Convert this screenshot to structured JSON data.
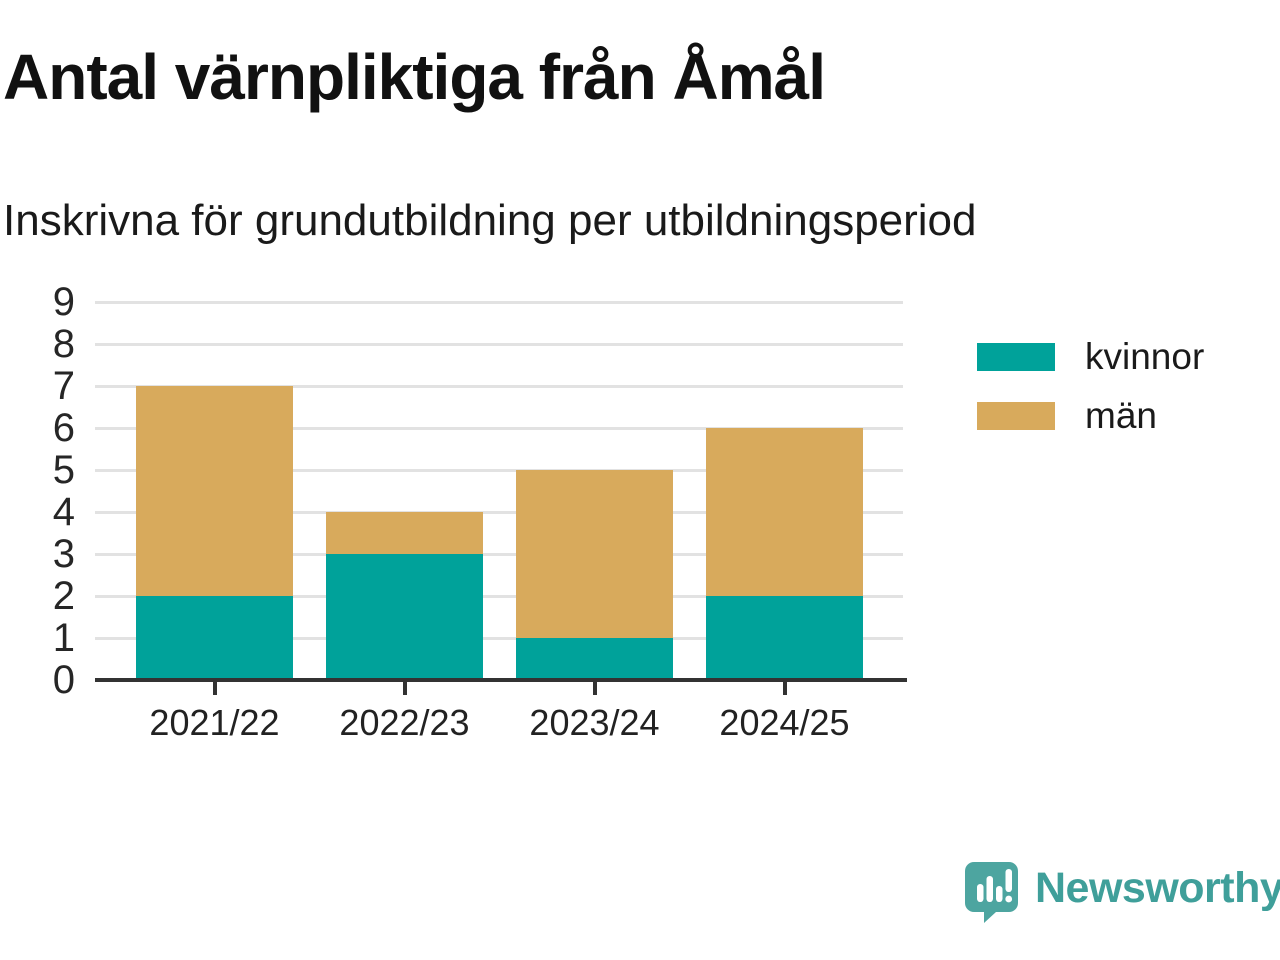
{
  "chart_data": {
    "type": "bar",
    "stacked": true,
    "title": "Antal värnpliktiga från Åmål",
    "subtitle": "Inskrivna för grundutbildning per utbildningsperiod",
    "categories": [
      "2021/22",
      "2022/23",
      "2023/24",
      "2024/25"
    ],
    "series": [
      {
        "name": "kvinnor",
        "color": "#00a29a",
        "values": [
          2,
          3,
          1,
          2
        ]
      },
      {
        "name": "män",
        "color": "#d8aa5c",
        "values": [
          5,
          1,
          4,
          4
        ]
      }
    ],
    "totals": [
      7,
      4,
      5,
      6
    ],
    "ylim": [
      0,
      9
    ],
    "yticks": [
      0,
      1,
      2,
      3,
      4,
      5,
      6,
      7,
      8,
      9
    ],
    "xlabel": "",
    "ylabel": "",
    "grid": true,
    "gridline_color": "#e2e2e2",
    "axis_color": "#333333",
    "legend_position": "right"
  },
  "branding": {
    "logo_text": "Newsworthy",
    "logo_icon": "newsworthy-speech-bubble-chart-icon",
    "logo_color": "#4da5a0",
    "wordmark_color": "#3f9f9a"
  }
}
